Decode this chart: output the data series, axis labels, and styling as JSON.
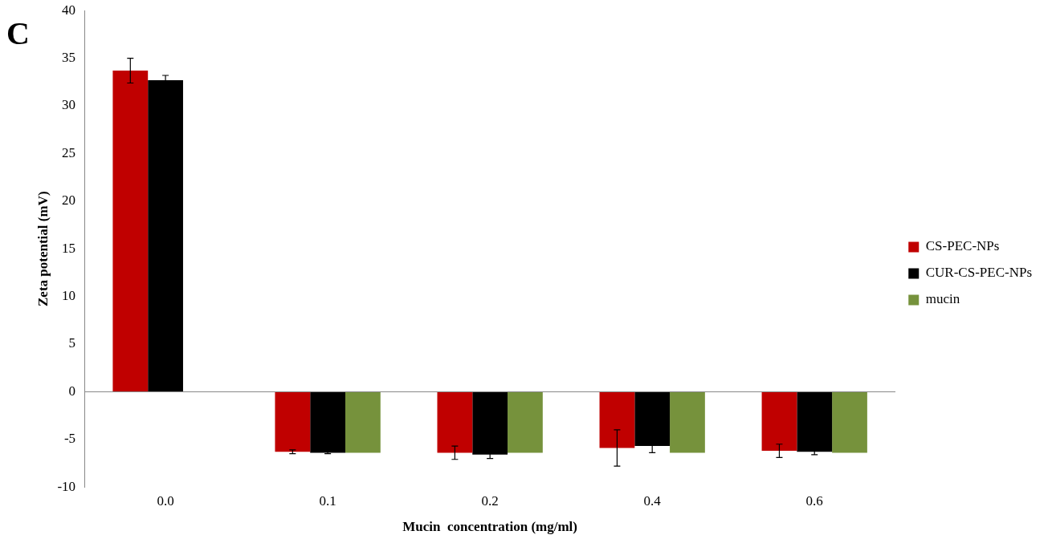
{
  "chart_data": {
    "type": "bar",
    "xlabel": "Mucin  concentration (mg/ml)",
    "ylabel": "Zeta potential (mV)",
    "annotations": [
      "C"
    ],
    "categories": [
      "0.0",
      "0.1",
      "0.2",
      "0.4",
      "0.6"
    ],
    "series": [
      {
        "name": "CS-PEC-NPs",
        "color": "#c00000",
        "values": [
          33.7,
          -6.3,
          -6.4,
          -5.9,
          -6.2
        ],
        "errors": [
          1.3,
          0.2,
          0.7,
          1.9,
          0.7
        ]
      },
      {
        "name": "CUR-CS-PEC-NPs",
        "color": "#000000",
        "values": [
          32.7,
          -6.4,
          -6.6,
          -5.7,
          -6.3
        ],
        "errors": [
          0.5,
          0.1,
          0.4,
          0.7,
          0.3
        ]
      },
      {
        "name": "mucin",
        "color": "#76923c",
        "values": [
          null,
          -6.4,
          -6.4,
          -6.4,
          -6.4
        ]
      }
    ],
    "ylim": [
      -10,
      40
    ],
    "yticks": [
      -10,
      -5,
      0,
      5,
      10,
      15,
      20,
      25,
      30,
      35,
      40
    ],
    "grid": false,
    "legend": "right"
  }
}
